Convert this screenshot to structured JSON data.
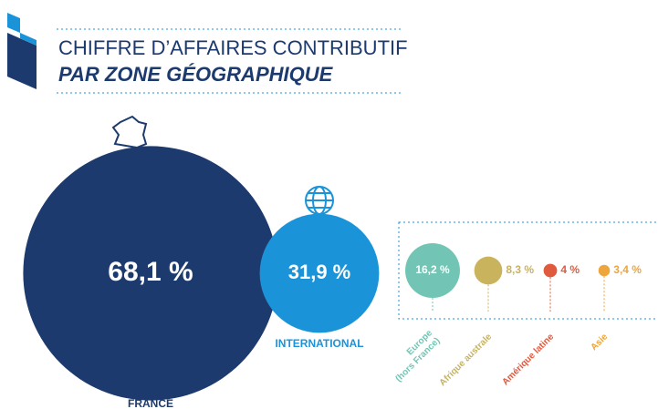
{
  "chart_data": {
    "type": "bubble",
    "title": "CHIFFRE D’AFFAIRES CONTRIBUTIF",
    "subtitle": "PAR ZONE GÉOGRAPHIQUE",
    "categories": [
      "FRANCE",
      "INTERNATIONAL"
    ],
    "values": [
      68.1,
      31.9
    ],
    "value_labels": [
      "68,1 %",
      "31,9 %"
    ],
    "colors": [
      "#1d3a6e",
      "#1b93d9"
    ],
    "breakdown": {
      "categories": [
        [
          "Europe",
          "(hors France)"
        ],
        [
          "Afrique australe"
        ],
        [
          "Amérique latine"
        ],
        [
          "Asie"
        ]
      ],
      "values": [
        16.2,
        8.3,
        4,
        3.4
      ],
      "value_labels": [
        "16,2 %",
        "8,3 %",
        "4 %",
        "3,4 %"
      ],
      "colors": [
        "#72c5b4",
        "#c9b35c",
        "#e05a3e",
        "#eea53b"
      ]
    }
  }
}
